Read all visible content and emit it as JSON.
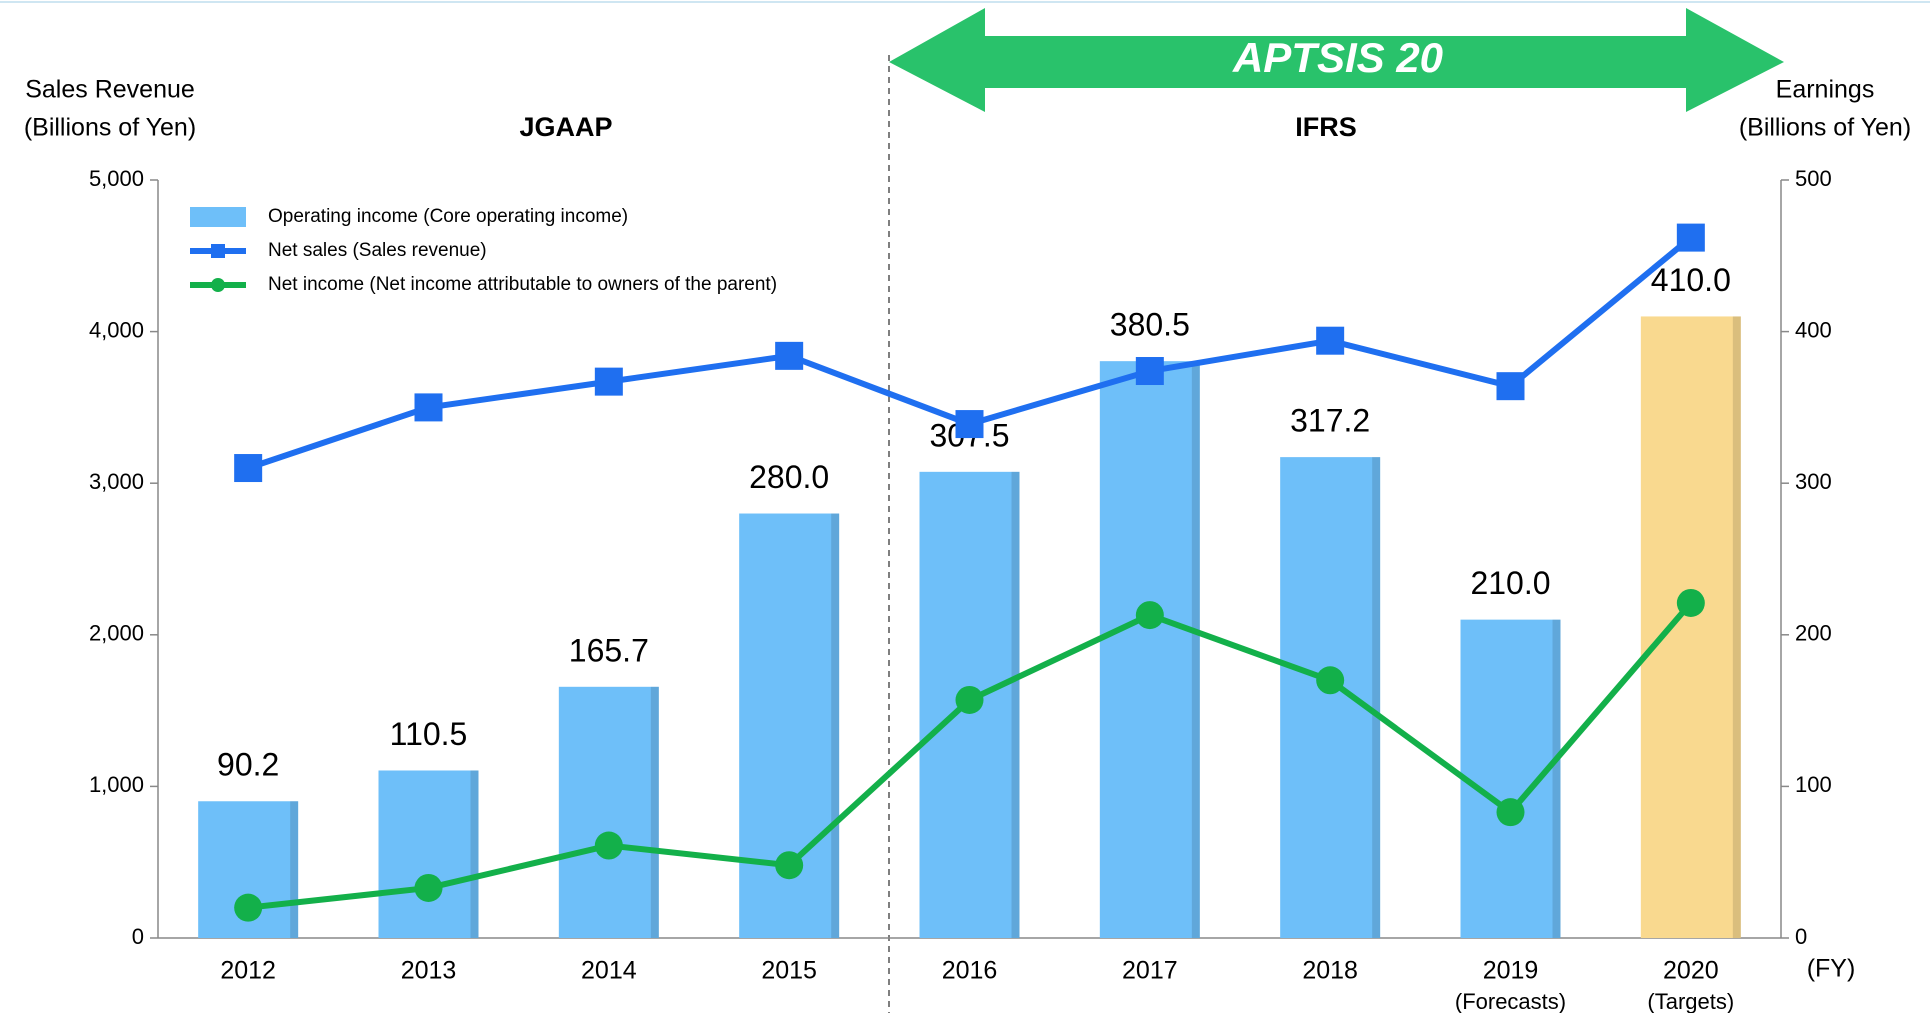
{
  "chart_data": {
    "type": "bar-line",
    "categories": [
      "2012",
      "2013",
      "2014",
      "2015",
      "2016",
      "2017",
      "2018",
      "2019",
      "2020"
    ],
    "category_notes": [
      null,
      null,
      null,
      null,
      null,
      null,
      null,
      "(Forecasts)",
      "(Targets)"
    ],
    "x_unit": "(FY)",
    "y_label": [
      "Sales Revenue",
      "(Billions of Yen)"
    ],
    "y2_label": [
      "Earnings",
      "(Billions of Yen)"
    ],
    "regions": [
      "JGAAP",
      "IFRS"
    ],
    "banner": "APTSIS 20",
    "ylim": [
      0,
      5000
    ],
    "yticks": [
      0,
      {
        "value": 1000,
        "label": "1,000"
      },
      {
        "value": 2000,
        "label": "2,000"
      },
      {
        "value": 3000,
        "label": "3,000"
      },
      {
        "value": 4000,
        "label": "4,000"
      },
      {
        "value": 5000,
        "label": "5,000"
      }
    ],
    "y2lim": [
      0,
      500
    ],
    "y2ticks": [
      0,
      100,
      200,
      300,
      400,
      500
    ],
    "legend": "upper left",
    "series": [
      {
        "name": "Operating income (Core operating income)",
        "type": "bar",
        "axis": "y2",
        "color": "#6ebff9",
        "colors": [
          "#6ebff9",
          "#6ebff9",
          "#6ebff9",
          "#6ebff9",
          "#6ebff9",
          "#6ebff9",
          "#6ebff9",
          "#6ebff9",
          "#f9d98f"
        ],
        "values": [
          90.2,
          110.5,
          165.7,
          280.0,
          307.5,
          380.5,
          317.2,
          210.0,
          410.0
        ],
        "value_labels": [
          "90.2",
          "110.5",
          "165.7",
          "280.0",
          "307.5",
          "380.5",
          "317.2",
          "210.0",
          "410.0"
        ]
      },
      {
        "name": "Net sales (Sales revenue)",
        "type": "line",
        "marker": "square",
        "axis": "y",
        "color": "#1f6ff0",
        "values": [
          3100,
          3500,
          3670,
          3840,
          3390,
          3740,
          3940,
          3640,
          4620
        ]
      },
      {
        "name": "Net income (Net income attributable to owners of the parent)",
        "type": "line",
        "marker": "circle",
        "axis": "y2",
        "color": "#13b04a",
        "values": [
          20,
          33,
          61,
          48,
          157,
          213,
          170,
          83,
          221
        ]
      }
    ]
  }
}
